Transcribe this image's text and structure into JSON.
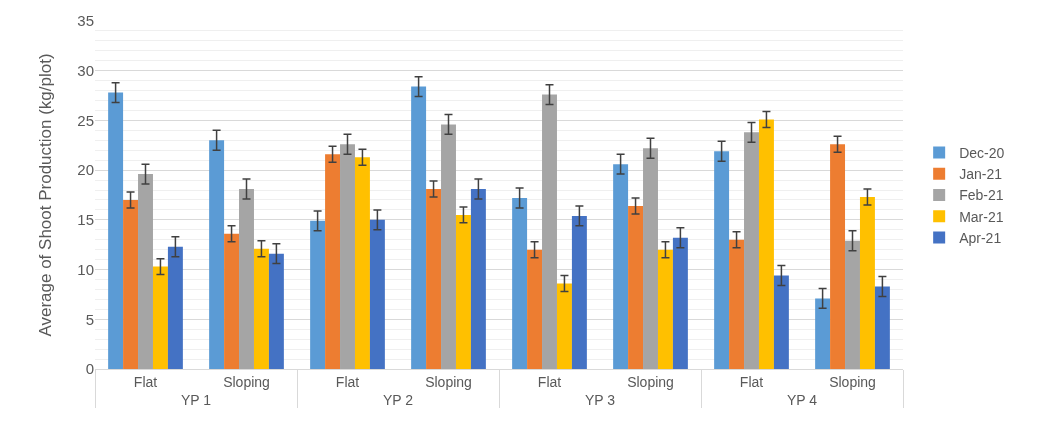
{
  "chart_data": {
    "type": "bar",
    "ylabel": "Average of Shoot Production (kg/plot)",
    "categories": [
      "Flat",
      "Sloping",
      "Flat",
      "Sloping",
      "Flat",
      "Sloping",
      "Flat",
      "Sloping"
    ],
    "annotations": [
      "YP 1",
      "YP 2",
      "YP 3",
      "YP 4"
    ],
    "series": [
      {
        "name": "Dec-20",
        "color": "#5b9bd5",
        "values": [
          27.8,
          23.0,
          14.9,
          28.4,
          17.2,
          20.6,
          21.9,
          7.1
        ],
        "errors": [
          1,
          1,
          1,
          1,
          1,
          1,
          1,
          1
        ]
      },
      {
        "name": "Jan-21",
        "color": "#ed7d31",
        "values": [
          17.0,
          13.6,
          21.6,
          18.1,
          12.0,
          16.4,
          13.0,
          22.6
        ],
        "errors": [
          0.8,
          0.8,
          0.8,
          0.8,
          0.8,
          0.8,
          0.8,
          0.8
        ]
      },
      {
        "name": "Feb-21",
        "color": "#a5a5a5",
        "values": [
          19.6,
          18.1,
          22.6,
          24.6,
          27.6,
          22.2,
          23.8,
          12.9
        ],
        "errors": [
          1,
          1,
          1,
          1,
          1,
          1,
          1,
          1
        ]
      },
      {
        "name": "Mar-21",
        "color": "#ffc000",
        "values": [
          10.3,
          12.1,
          21.3,
          15.5,
          8.6,
          12.0,
          25.1,
          17.3
        ],
        "errors": [
          0.8,
          0.8,
          0.8,
          0.8,
          0.8,
          0.8,
          0.8,
          0.8
        ]
      },
      {
        "name": "Apr-21",
        "color": "#4472c4",
        "values": [
          12.3,
          11.6,
          15.0,
          18.1,
          15.4,
          13.2,
          9.4,
          8.3
        ],
        "errors": [
          1,
          1,
          1,
          1,
          1,
          1,
          1,
          1
        ]
      }
    ],
    "ylim": [
      0,
      35
    ],
    "yticks": [
      0,
      5,
      10,
      15,
      20,
      25,
      30,
      35
    ],
    "grid": "y",
    "legend": "right"
  }
}
